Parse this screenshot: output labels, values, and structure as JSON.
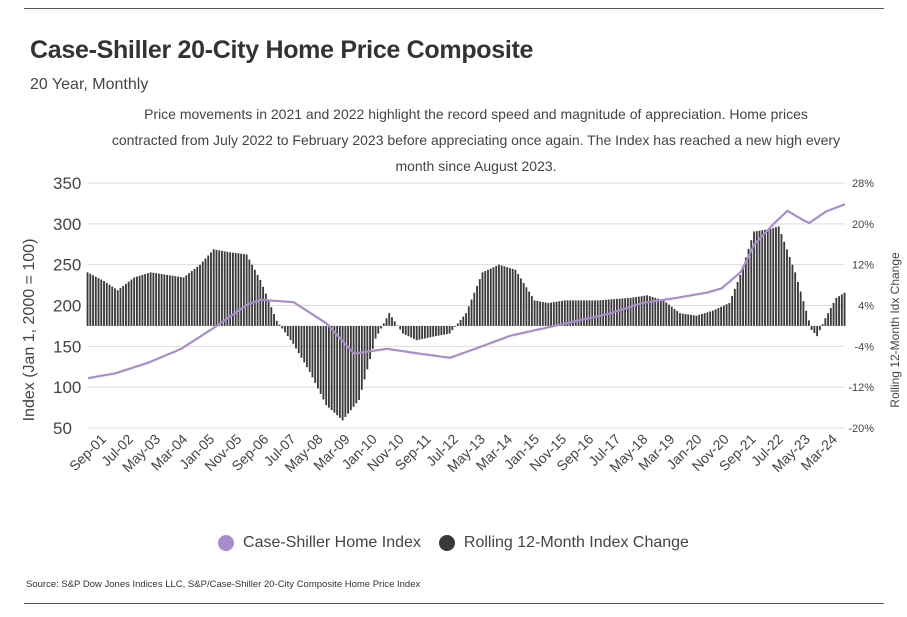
{
  "title": "Case-Shiller 20-City Home Price Composite",
  "subtitle": "20 Year, Monthly",
  "description": "Price movements in 2021 and 2022 highlight the record speed and magnitude of appreciation. Home prices contracted from July 2022 to February 2023 before appreciating once again. The Index has reached a new high every month since August 2023.",
  "source": "Source:  S&P Dow Jones Indices LLC, S&P/Case-Shiller 20-City Composite Home Price Index",
  "colors": {
    "index_line": "#a98ccc",
    "bars": "#3a3a3a",
    "grid": "#dddddd",
    "text": "#444444"
  },
  "chart_data": {
    "type": "bar+line",
    "title": "Case-Shiller 20-City Home Price Composite",
    "subtitle": "20 Year, Monthly",
    "ylabel_left": "Index (Jan 1, 2000 = 100)",
    "ylabel_right": "Rolling 12-Month Idx Change",
    "left_axis": {
      "ylim": [
        50,
        350
      ],
      "ticks": [
        "350",
        "300",
        "250",
        "200",
        "150",
        "100",
        "50"
      ]
    },
    "right_axis": {
      "ylim": [
        -20,
        28
      ],
      "ticks": [
        "28%",
        "20%",
        "12%",
        "4%",
        "-4%",
        "-12%",
        "-20%"
      ]
    },
    "x_tick_labels": [
      "Sep-01",
      "Jul-02",
      "May-03",
      "Mar-04",
      "Jan-05",
      "Nov-05",
      "Sep-06",
      "Jul-07",
      "May-08",
      "Mar-09",
      "Jan-10",
      "Nov-10",
      "Sep-11",
      "Jul-12",
      "May-13",
      "Mar-14",
      "Jan-15",
      "Nov-15",
      "Sep-16",
      "Jul-17",
      "May-18",
      "Mar-19",
      "Jan-20",
      "Nov-20",
      "Sep-21",
      "Jul-22",
      "May-23",
      "Mar-24"
    ],
    "x_range_months": [
      "2001-03",
      "2024-03"
    ],
    "grid": true,
    "legend_position": "bottom",
    "series": [
      {
        "name": "Case-Shiller Home Index",
        "type": "line",
        "axis": "left",
        "anchors": [
          [
            "2001-03",
            111
          ],
          [
            "2002-01",
            117
          ],
          [
            "2003-01",
            130
          ],
          [
            "2004-01",
            147
          ],
          [
            "2005-01",
            173
          ],
          [
            "2006-01",
            201
          ],
          [
            "2006-06",
            207
          ],
          [
            "2007-06",
            204
          ],
          [
            "2008-06",
            178
          ],
          [
            "2009-04",
            141
          ],
          [
            "2010-04",
            147
          ],
          [
            "2011-04",
            141
          ],
          [
            "2012-03",
            136
          ],
          [
            "2013-01",
            148
          ],
          [
            "2014-01",
            163
          ],
          [
            "2015-01",
            172
          ],
          [
            "2016-01",
            181
          ],
          [
            "2017-01",
            190
          ],
          [
            "2018-01",
            203
          ],
          [
            "2019-01",
            209
          ],
          [
            "2020-01",
            216
          ],
          [
            "2020-06",
            221
          ],
          [
            "2021-01",
            241
          ],
          [
            "2021-06",
            275
          ],
          [
            "2022-01",
            300
          ],
          [
            "2022-06",
            316
          ],
          [
            "2022-12",
            304
          ],
          [
            "2023-02",
            301
          ],
          [
            "2023-08",
            315
          ],
          [
            "2024-03",
            324
          ]
        ]
      },
      {
        "name": "Rolling 12-Month Index Change",
        "type": "bar",
        "axis": "right",
        "unit": "percent",
        "anchors": [
          [
            "2001-03",
            10.5
          ],
          [
            "2001-09",
            8.8
          ],
          [
            "2002-02",
            7.0
          ],
          [
            "2002-08",
            9.5
          ],
          [
            "2003-02",
            10.5
          ],
          [
            "2003-08",
            10
          ],
          [
            "2004-02",
            9.5
          ],
          [
            "2004-08",
            12.0
          ],
          [
            "2005-01",
            15.0
          ],
          [
            "2005-06",
            14.5
          ],
          [
            "2006-01",
            14.0
          ],
          [
            "2006-06",
            9.0
          ],
          [
            "2006-12",
            1.0
          ],
          [
            "2007-06",
            -3.5
          ],
          [
            "2007-12",
            -9.0
          ],
          [
            "2008-06",
            -15.5
          ],
          [
            "2008-12",
            -18.5
          ],
          [
            "2009-06",
            -14.5
          ],
          [
            "2009-12",
            -2.5
          ],
          [
            "2010-05",
            2.5
          ],
          [
            "2010-10",
            -1.5
          ],
          [
            "2011-03",
            -2.8
          ],
          [
            "2011-10",
            -2.0
          ],
          [
            "2012-03",
            -1.5
          ],
          [
            "2012-09",
            2.5
          ],
          [
            "2013-03",
            10.5
          ],
          [
            "2013-09",
            12.0
          ],
          [
            "2014-03",
            11.0
          ],
          [
            "2014-10",
            5.0
          ],
          [
            "2015-03",
            4.5
          ],
          [
            "2015-09",
            5.0
          ],
          [
            "2016-09",
            5.0
          ],
          [
            "2017-09",
            5.5
          ],
          [
            "2018-03",
            6.0
          ],
          [
            "2018-09",
            5.0
          ],
          [
            "2019-03",
            2.5
          ],
          [
            "2019-09",
            2.0
          ],
          [
            "2020-03",
            3.0
          ],
          [
            "2020-09",
            4.5
          ],
          [
            "2021-01",
            10.0
          ],
          [
            "2021-06",
            18.5
          ],
          [
            "2021-12",
            19.0
          ],
          [
            "2022-03",
            19.5
          ],
          [
            "2022-09",
            10.5
          ],
          [
            "2023-03",
            -0.8
          ],
          [
            "2023-05",
            -2.0
          ],
          [
            "2023-08",
            1.5
          ],
          [
            "2023-12",
            5.5
          ],
          [
            "2024-03",
            6.5
          ]
        ]
      }
    ]
  }
}
